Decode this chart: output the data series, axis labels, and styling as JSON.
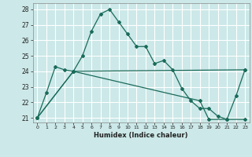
{
  "xlabel": "Humidex (Indice chaleur)",
  "background_color": "#cce8e8",
  "grid_color": "#ffffff",
  "line_color": "#1a6b5a",
  "xlim": [
    -0.5,
    23.5
  ],
  "ylim": [
    20.7,
    28.4
  ],
  "yticks": [
    21,
    22,
    23,
    24,
    25,
    26,
    27,
    28
  ],
  "xticks": [
    0,
    1,
    2,
    3,
    4,
    5,
    6,
    7,
    8,
    9,
    10,
    11,
    12,
    13,
    14,
    15,
    16,
    17,
    18,
    19,
    20,
    21,
    22,
    23
  ],
  "curve1_x": [
    0,
    1,
    2,
    3,
    4,
    5,
    6,
    7,
    8,
    9,
    10,
    11,
    12,
    13,
    14,
    15,
    16,
    17,
    18,
    19,
    20,
    21,
    22,
    23
  ],
  "curve1_y": [
    21.0,
    22.6,
    24.3,
    24.1,
    24.0,
    25.0,
    26.6,
    27.7,
    28.0,
    27.2,
    26.4,
    25.6,
    25.6,
    24.5,
    24.7,
    24.1,
    22.9,
    22.1,
    21.6,
    21.6,
    21.1,
    20.9,
    22.4,
    24.1
  ],
  "curve2_x": [
    0,
    4,
    23
  ],
  "curve2_y": [
    21.0,
    24.0,
    24.1
  ],
  "curve3_x": [
    0,
    4,
    18,
    19,
    21,
    23
  ],
  "curve3_y": [
    21.0,
    24.0,
    22.1,
    20.9,
    20.9,
    20.9
  ]
}
